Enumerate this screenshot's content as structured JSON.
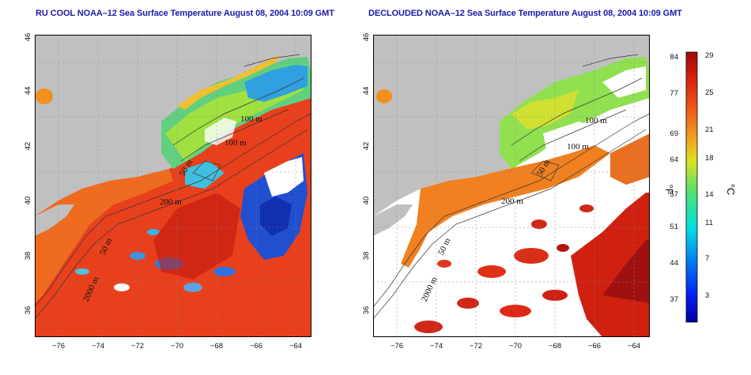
{
  "panels": [
    {
      "title": "RU COOL NOAA–12 Sea Surface Temperature August 08, 2004 10:09 GMT",
      "mode": "cloudy"
    },
    {
      "title": "DECLOUDED NOAA–12 Sea Surface Temperature August 08, 2004 10:09 GMT",
      "mode": "declouded"
    }
  ],
  "axes": {
    "x_ticks": [
      "−76",
      "−74",
      "−72",
      "−70",
      "−68",
      "−66",
      "−64"
    ],
    "y_ticks": [
      "36",
      "38",
      "40",
      "42",
      "44",
      "46"
    ],
    "lon_range": [
      -77,
      -63
    ],
    "lat_range": [
      35,
      46
    ]
  },
  "isobaths": [
    "100 m",
    "100 m",
    "50 m",
    "200 m",
    "50 m",
    "2000 m"
  ],
  "colorbar": {
    "unit_f": "°F",
    "unit_c": "°C",
    "f_ticks": [
      "84",
      "77",
      "69",
      "64",
      "57",
      "51",
      "44",
      "37"
    ],
    "c_ticks": [
      "29",
      "25",
      "21",
      "18",
      "14",
      "11",
      "7",
      "3"
    ]
  },
  "colors": {
    "land": "#c0c0c0",
    "cloud": "#ffffff",
    "warm": "#e03018",
    "hot": "#c01010",
    "mid": "#f0a020",
    "cool": "#40d0a0",
    "cold": "#2060e0"
  }
}
